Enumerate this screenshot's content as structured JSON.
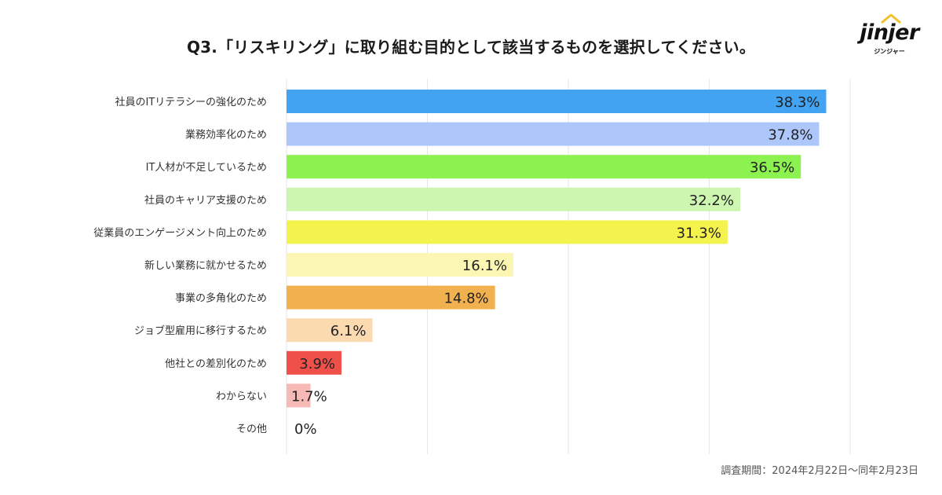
{
  "logo": {
    "name": "jinjer",
    "sub": "ジンジャー"
  },
  "note": "調査期間：2024年2月22日〜同年2月23日",
  "colors": {
    "grid": "#e6e6e6",
    "label": "#333333",
    "bars": [
      "#42a3f2",
      "#adc7fb",
      "#8bf24f",
      "#cdf6b0",
      "#f4f24c",
      "#fbf6b1",
      "#f2b14f",
      "#fcdab0",
      "#f0504a",
      "#f7b9b6",
      "#f7b9b6"
    ]
  },
  "chart_data": {
    "type": "bar",
    "orientation": "horizontal",
    "title": "Q3.「リスキリング」に取り組む目的として該当するものを選択してください。",
    "categories": [
      "社員のITリテラシーの強化のため",
      "業務効率化のため",
      "IT人材が不足しているため",
      "社員のキャリア支援のため",
      "従業員のエンゲージメント向上のため",
      "新しい業務に就かせるため",
      "事業の多角化のため",
      "ジョブ型雇用に移行するため",
      "他社との差別化のため",
      "わからない",
      "その他"
    ],
    "values": [
      38.3,
      37.8,
      36.5,
      32.2,
      31.3,
      16.1,
      14.8,
      6.1,
      3.9,
      1.7,
      0
    ],
    "value_labels": [
      "38.3%",
      "37.8%",
      "36.5%",
      "32.2%",
      "31.3%",
      "16.1%",
      "14.8%",
      "6.1%",
      "3.9%",
      "1.7%",
      "0%"
    ],
    "xlim": [
      0,
      40
    ],
    "xlabel": "",
    "ylabel": "",
    "grid": true
  }
}
